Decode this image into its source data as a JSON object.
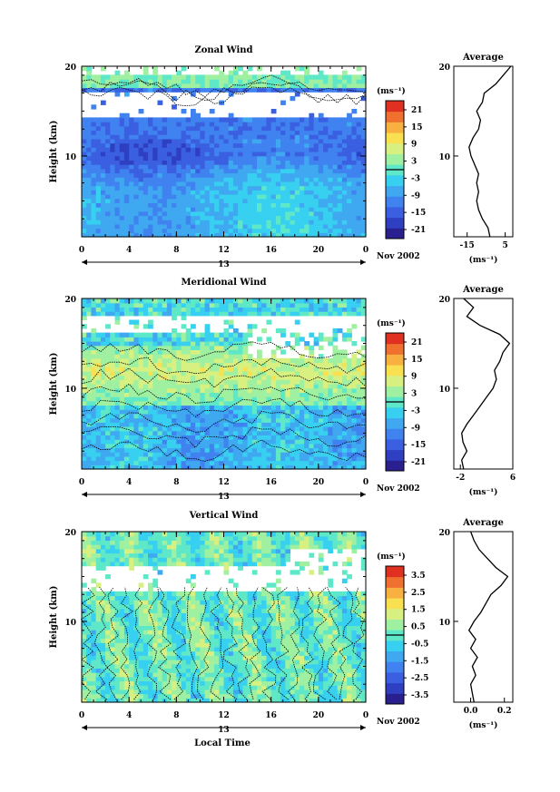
{
  "xlabel": "Local Time",
  "date_label": "Nov 2002",
  "day_label": "13",
  "colors": {
    "colormap": [
      "#2a1f8f",
      "#2f3fc2",
      "#3a5fe0",
      "#3f82f0",
      "#3fa8f0",
      "#38d0f0",
      "#5fe8c8",
      "#9ff0a0",
      "#d8f080",
      "#f8e050",
      "#f8b040",
      "#f07030",
      "#e03020"
    ]
  },
  "chart_data": [
    {
      "type": "heatmap",
      "title": "Zonal Wind",
      "xlabel": "",
      "ylabel": "Height (km)",
      "x_ticks": [
        "0",
        "4",
        "8",
        "12",
        "16",
        "20",
        "0"
      ],
      "y_ticks": [
        "10",
        "20"
      ],
      "xlim": [
        0,
        24
      ],
      "ylim": [
        1,
        20
      ],
      "colorbar": {
        "unit": "(ms⁻¹)",
        "ticks": [
          "21",
          "15",
          "9",
          "3",
          "-3",
          "-9",
          "-15",
          "-21"
        ],
        "range": [
          -24,
          24
        ]
      },
      "field_description": "westward (negative) winds dominate below ~12 km; data gap ~14-17 km; weak winds near 18-20 km",
      "average_profile": {
        "title": "Average",
        "xlabel": "(ms⁻¹)",
        "x_ticks": [
          "-15",
          "5"
        ],
        "xlim": [
          -22,
          9
        ],
        "y_ticks": [
          "10",
          "20"
        ],
        "points": [
          [
            -3,
            1
          ],
          [
            -4,
            2
          ],
          [
            -7,
            3
          ],
          [
            -9,
            4
          ],
          [
            -10,
            5
          ],
          [
            -9,
            6
          ],
          [
            -10,
            7
          ],
          [
            -9,
            8
          ],
          [
            -11,
            9
          ],
          [
            -13,
            10
          ],
          [
            -14,
            11
          ],
          [
            -12,
            12
          ],
          [
            -9,
            13
          ],
          [
            -8,
            14
          ],
          [
            -10,
            15
          ],
          [
            -7,
            16
          ],
          [
            -6,
            17
          ],
          [
            0,
            18
          ],
          [
            4,
            19
          ],
          [
            8,
            20
          ]
        ]
      }
    },
    {
      "type": "heatmap",
      "title": "Meridional Wind",
      "xlabel": "",
      "ylabel": "Height (km)",
      "x_ticks": [
        "0",
        "4",
        "8",
        "12",
        "16",
        "20",
        "0"
      ],
      "y_ticks": [
        "10",
        "20"
      ],
      "xlim": [
        0,
        24
      ],
      "ylim": [
        1,
        20
      ],
      "colorbar": {
        "unit": "(ms⁻¹)",
        "ticks": [
          "21",
          "15",
          "9",
          "3",
          "-3",
          "-9",
          "-15",
          "-21"
        ],
        "range": [
          -24,
          24
        ]
      },
      "field_description": "weak southward winds below ~8 km, northward winds 9-14 km, data gap ~16-18 km",
      "average_profile": {
        "title": "Average",
        "xlabel": "(ms⁻¹)",
        "x_ticks": [
          "-2",
          "6"
        ],
        "xlim": [
          -3,
          6
        ],
        "y_ticks": [
          "10",
          "20"
        ],
        "points": [
          [
            -1.5,
            1
          ],
          [
            -1.8,
            2
          ],
          [
            -1,
            3
          ],
          [
            -1.6,
            4
          ],
          [
            -1.8,
            5
          ],
          [
            -1,
            6
          ],
          [
            0,
            7
          ],
          [
            1,
            8
          ],
          [
            2,
            9
          ],
          [
            3,
            10
          ],
          [
            3.5,
            11
          ],
          [
            3.2,
            12
          ],
          [
            4,
            13
          ],
          [
            4.5,
            14
          ],
          [
            5.5,
            15
          ],
          [
            4,
            16
          ],
          [
            1,
            17
          ],
          [
            -1,
            18
          ],
          [
            0,
            19
          ],
          [
            -1.5,
            20
          ]
        ]
      }
    },
    {
      "type": "heatmap",
      "title": "Vertical Wind",
      "xlabel": "Local Time",
      "ylabel": "Height (km)",
      "x_ticks": [
        "0",
        "4",
        "8",
        "12",
        "16",
        "20",
        "0"
      ],
      "y_ticks": [
        "10",
        "20"
      ],
      "xlim": [
        0,
        24
      ],
      "ylim": [
        1,
        20
      ],
      "colorbar": {
        "unit": "(ms⁻¹)",
        "ticks": [
          "3.5",
          "2.5",
          "1.5",
          "0.5",
          "-0.5",
          "-1.5",
          "-2.5",
          "-3.5"
        ],
        "range": [
          -4,
          4
        ]
      },
      "field_description": "small vertical velocities (-1 to 1 m/s) with many zero contours; data gap ~13-16 km",
      "average_profile": {
        "title": "Average",
        "xlabel": "(ms⁻¹)",
        "x_ticks": [
          "0.0",
          "0.2"
        ],
        "xlim": [
          -0.1,
          0.25
        ],
        "y_ticks": [
          "10",
          "20"
        ],
        "points": [
          [
            0.02,
            1
          ],
          [
            0.01,
            2
          ],
          [
            0.0,
            3
          ],
          [
            0.03,
            4
          ],
          [
            0.01,
            5
          ],
          [
            0.04,
            6
          ],
          [
            0.0,
            7
          ],
          [
            0.03,
            8
          ],
          [
            -0.01,
            9
          ],
          [
            0.02,
            10
          ],
          [
            0.06,
            11
          ],
          [
            0.09,
            12
          ],
          [
            0.12,
            13
          ],
          [
            0.18,
            14
          ],
          [
            0.22,
            15
          ],
          [
            0.15,
            16
          ],
          [
            0.1,
            17
          ],
          [
            0.05,
            18
          ],
          [
            0.02,
            19
          ],
          [
            0.0,
            20
          ]
        ]
      }
    }
  ]
}
